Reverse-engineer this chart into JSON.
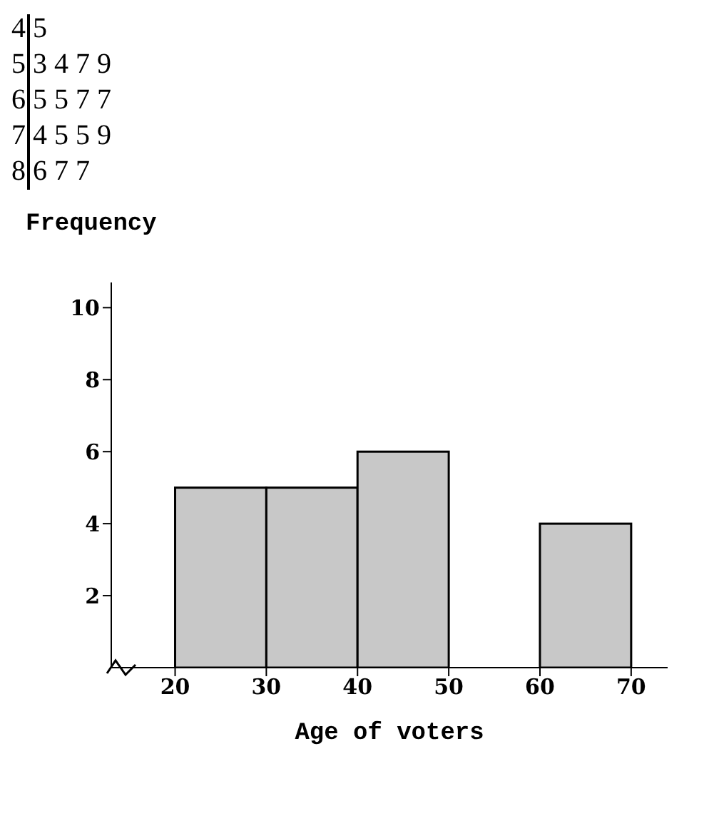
{
  "chart_data": [
    {
      "type": "other",
      "annotations": [
        "4 5",
        "5 3 4 7 9",
        "6 5 5 7 7",
        "7 4 5 5 9",
        "8 6 7 7"
      ]
    },
    {
      "type": "histogram",
      "xlabel": "Age of voters",
      "ylabel": "Frequency",
      "bins": [
        20,
        30,
        40,
        50,
        60,
        70
      ],
      "values": [
        5,
        5,
        6,
        0,
        4
      ],
      "color": "#c8c8c8",
      "xlim": [
        13,
        74
      ],
      "xticks": [
        20,
        30,
        40,
        50,
        60,
        70
      ],
      "ylim": [
        0,
        10.7
      ],
      "yticks": [
        2,
        4,
        6,
        8,
        10
      ],
      "grid": false,
      "legend": false
    }
  ]
}
